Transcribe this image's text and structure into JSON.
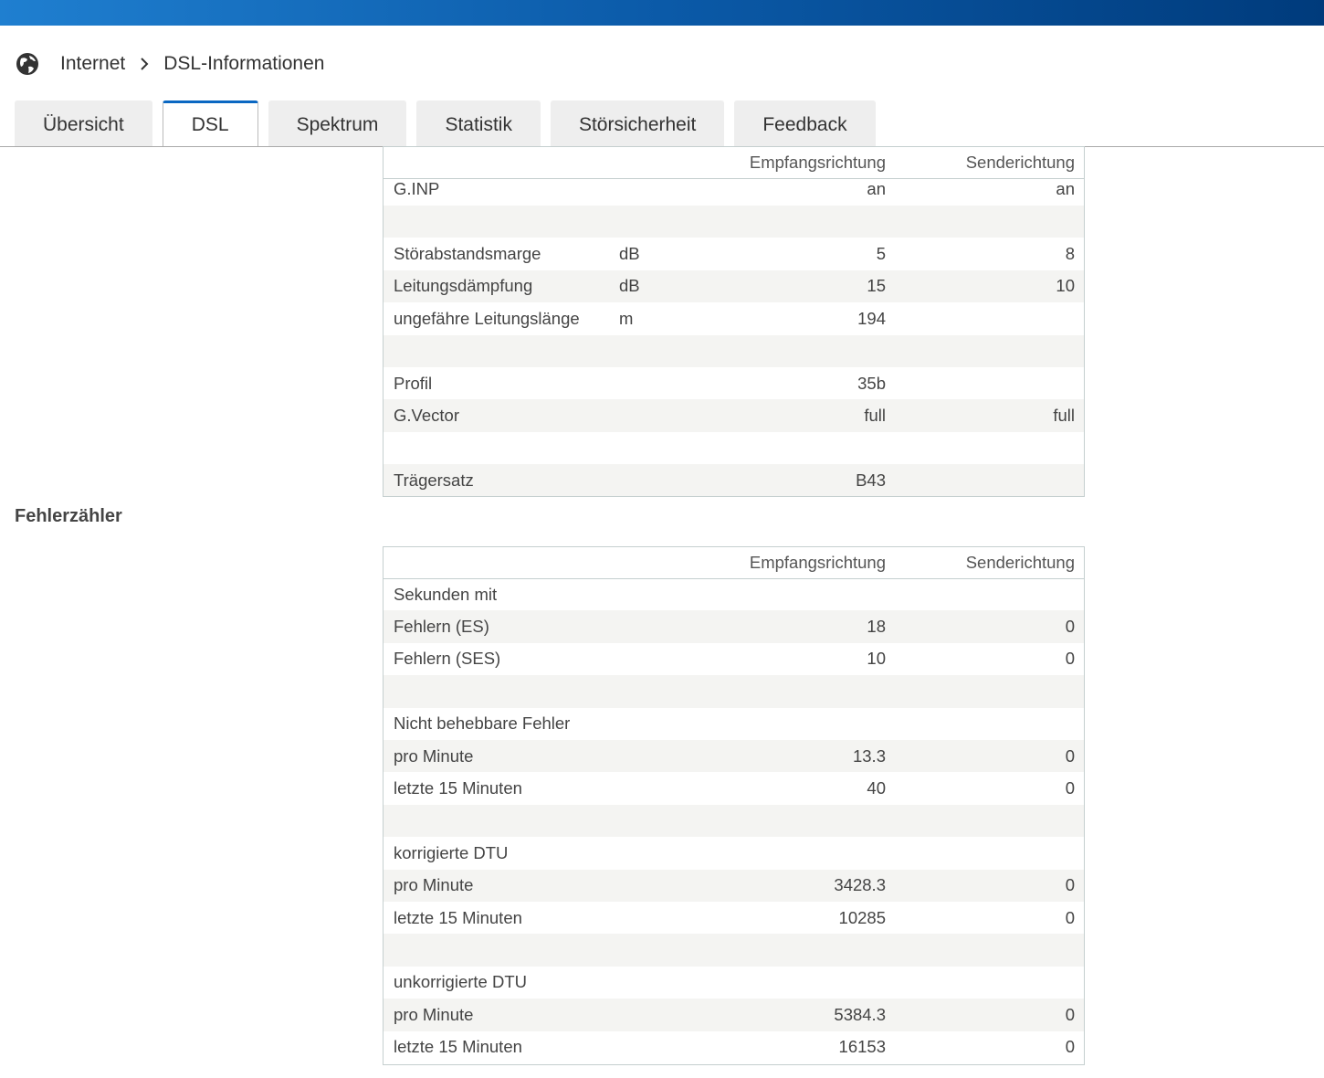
{
  "breadcrumb": [
    "Internet",
    "DSL-Informationen"
  ],
  "tabs": {
    "items": [
      "Übersicht",
      "DSL",
      "Spektrum",
      "Statistik",
      "Störsicherheit",
      "Feedback"
    ],
    "active": 1
  },
  "table1": {
    "header": {
      "rx": "Empfangsrichtung",
      "tx": "Senderichtung"
    },
    "rows": [
      {
        "label": "G.INP",
        "rx": "an",
        "tx": "an"
      },
      null,
      {
        "label": "Störabstandsmarge",
        "unit": "dB",
        "rx": 5,
        "tx": 8
      },
      {
        "label": "Leitungsdämpfung",
        "unit": "dB",
        "rx": 15,
        "tx": 10
      },
      {
        "label": "ungefähre Leitungslänge",
        "unit": "m",
        "rx": 194
      },
      null,
      {
        "label": "Profil",
        "rx": "35b"
      },
      {
        "label": "G.Vector",
        "rx": "full",
        "tx": "full"
      },
      null,
      {
        "label": "Trägersatz",
        "rx": "B43"
      }
    ]
  },
  "section_title": "Fehlerzähler",
  "table2": {
    "header": {
      "rx": "Empfangsrichtung",
      "tx": "Senderichtung"
    },
    "rows": [
      {
        "label": "Sekunden mit"
      },
      {
        "label": "Fehlern (ES)",
        "rx": 18,
        "tx": 0
      },
      {
        "label": "Fehlern (SES)",
        "rx": 10,
        "tx": 0
      },
      null,
      {
        "label": "Nicht behebbare Fehler"
      },
      {
        "label": "pro Minute",
        "rx": 13.3,
        "tx": 0
      },
      {
        "label": "letzte 15 Minuten",
        "rx": 40,
        "tx": 0
      },
      null,
      {
        "label": "korrigierte DTU"
      },
      {
        "label": "pro Minute",
        "rx": 3428.3,
        "tx": 0
      },
      {
        "label": "letzte 15 Minuten",
        "rx": 10285,
        "tx": 0
      },
      null,
      {
        "label": "unkorrigierte DTU"
      },
      {
        "label": "pro Minute",
        "rx": 5384.3,
        "tx": 0
      },
      {
        "label": "letzte 15 Minuten",
        "rx": 16153,
        "tx": 0
      }
    ]
  }
}
